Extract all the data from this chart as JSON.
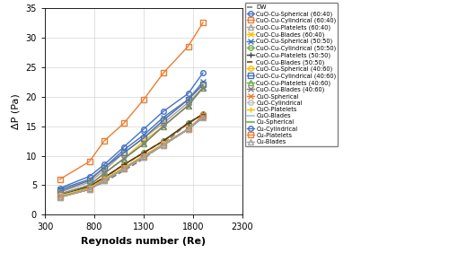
{
  "re": [
    450,
    750,
    900,
    1100,
    1300,
    1500,
    1750,
    1900
  ],
  "series": [
    {
      "label": "DW",
      "color": "#808080",
      "marker": "None",
      "linestyle": "--",
      "linewidth": 1.2,
      "markersize": 4,
      "markerfacecolor": "none",
      "values": [
        3.0,
        4.5,
        5.5,
        7.5,
        9.5,
        12.0,
        15.5,
        17.0
      ]
    },
    {
      "label": "CuO-Cu-Spherical (60:40)",
      "color": "#4472C4",
      "marker": "o",
      "markerfacecolor": "none",
      "linestyle": "-",
      "linewidth": 1.0,
      "markersize": 4,
      "values": [
        4.5,
        6.5,
        8.5,
        11.5,
        14.5,
        17.5,
        20.5,
        24.0
      ]
    },
    {
      "label": "CuO-Cu-Cylindrical (60:40)",
      "color": "#ED7D31",
      "marker": "s",
      "markerfacecolor": "none",
      "linestyle": "-",
      "linewidth": 1.0,
      "markersize": 4,
      "values": [
        6.0,
        9.0,
        12.5,
        15.5,
        19.5,
        24.0,
        28.5,
        32.5
      ]
    },
    {
      "label": "CuO-Cu-Platelets (60:40)",
      "color": "#A5A5A5",
      "marker": "^",
      "markerfacecolor": "none",
      "linestyle": "-",
      "linewidth": 1.0,
      "markersize": 4,
      "values": [
        3.8,
        5.5,
        7.5,
        10.5,
        13.0,
        15.5,
        19.0,
        21.5
      ]
    },
    {
      "label": "CuO-Cu-Blades (60:40)",
      "color": "#FFC000",
      "marker": "x",
      "markerfacecolor": "none",
      "linestyle": "-",
      "linewidth": 1.0,
      "markersize": 4,
      "values": [
        3.5,
        5.0,
        7.0,
        9.5,
        12.5,
        15.0,
        18.5,
        21.5
      ]
    },
    {
      "label": "CuO-Cu-Spherical (50:50)",
      "color": "#4472C4",
      "marker": "x",
      "markerfacecolor": "#4472C4",
      "linestyle": "-",
      "linewidth": 1.0,
      "markersize": 4,
      "values": [
        4.3,
        6.0,
        8.0,
        11.0,
        13.5,
        16.5,
        19.5,
        22.5
      ]
    },
    {
      "label": "CuO-Cu-Cylindrical (50:50)",
      "color": "#70AD47",
      "marker": "o",
      "markerfacecolor": "none",
      "linestyle": "-",
      "linewidth": 1.0,
      "markersize": 4,
      "values": [
        3.3,
        4.8,
        6.3,
        8.5,
        10.5,
        12.5,
        15.5,
        17.0
      ]
    },
    {
      "label": "CuO-Cu-Platelets (50:50)",
      "color": "#404040",
      "marker": "+",
      "markerfacecolor": "#404040",
      "linestyle": "-",
      "linewidth": 1.0,
      "markersize": 4,
      "values": [
        3.3,
        4.8,
        6.3,
        8.5,
        10.5,
        12.5,
        15.5,
        17.0
      ]
    },
    {
      "label": "CuO-Cu-Blades (50:50)",
      "color": "#7B3F00",
      "marker": "None",
      "markerfacecolor": "none",
      "linestyle": "--",
      "linewidth": 1.2,
      "markersize": 4,
      "values": [
        3.3,
        4.8,
        6.3,
        8.5,
        10.5,
        12.5,
        15.5,
        17.0
      ]
    },
    {
      "label": "CuO-Cu-Spherical (40:60)",
      "color": "#FFC000",
      "marker": "o",
      "markerfacecolor": "none",
      "linestyle": "-",
      "linewidth": 1.0,
      "markersize": 4,
      "values": [
        4.0,
        5.8,
        8.0,
        10.5,
        13.0,
        16.0,
        19.5,
        22.0
      ]
    },
    {
      "label": "CuO-Cu-Cylindrical (40:60)",
      "color": "#4472C4",
      "marker": "s",
      "markerfacecolor": "none",
      "linestyle": "-",
      "linewidth": 1.0,
      "markersize": 4,
      "values": [
        4.0,
        5.8,
        8.0,
        10.5,
        13.0,
        16.0,
        19.5,
        22.0
      ]
    },
    {
      "label": "CuO-Cu-Platelets (40:60)",
      "color": "#70AD47",
      "marker": "^",
      "markerfacecolor": "none",
      "linestyle": "-",
      "linewidth": 1.0,
      "markersize": 4,
      "values": [
        3.5,
        5.0,
        7.0,
        9.5,
        12.0,
        15.0,
        18.5,
        21.5
      ]
    },
    {
      "label": "CuO-Cu-Blades (40:60)",
      "color": "#808080",
      "marker": "x",
      "markerfacecolor": "#808080",
      "linestyle": "-",
      "linewidth": 1.0,
      "markersize": 4,
      "values": [
        3.5,
        5.0,
        7.0,
        9.5,
        12.0,
        15.0,
        18.5,
        21.5
      ]
    },
    {
      "label": "CuO-Spherical",
      "color": "#ED7D31",
      "marker": "x",
      "markerfacecolor": "#ED7D31",
      "linestyle": "-",
      "linewidth": 1.0,
      "markersize": 4,
      "values": [
        3.2,
        4.5,
        6.0,
        8.0,
        10.0,
        12.0,
        14.5,
        16.5
      ]
    },
    {
      "label": "CuO-Cylindrical",
      "color": "#C0C0C0",
      "marker": "o",
      "markerfacecolor": "none",
      "linestyle": "-",
      "linewidth": 1.0,
      "markersize": 4,
      "values": [
        3.2,
        4.5,
        6.0,
        8.0,
        10.0,
        12.0,
        14.5,
        16.5
      ]
    },
    {
      "label": "CuO-Platelets",
      "color": "#FFC000",
      "marker": "+",
      "markerfacecolor": "#FFC000",
      "linestyle": "-",
      "linewidth": 1.0,
      "markersize": 4,
      "values": [
        3.2,
        4.5,
        6.0,
        8.0,
        10.0,
        12.0,
        14.5,
        16.5
      ]
    },
    {
      "label": "CuO-Blades",
      "color": "#9DC3E6",
      "marker": "None",
      "markerfacecolor": "none",
      "linestyle": "-",
      "linewidth": 1.2,
      "markersize": 4,
      "values": [
        3.0,
        4.3,
        5.8,
        7.8,
        9.8,
        11.8,
        14.5,
        16.5
      ]
    },
    {
      "label": "Cu-Spherical",
      "color": "#70AD47",
      "marker": "None",
      "markerfacecolor": "none",
      "linestyle": "-",
      "linewidth": 1.2,
      "markersize": 4,
      "values": [
        3.0,
        4.3,
        5.8,
        7.8,
        9.8,
        11.8,
        14.5,
        16.5
      ]
    },
    {
      "label": "Cu-Cylindrical",
      "color": "#4472C4",
      "marker": "o",
      "markerfacecolor": "none",
      "linestyle": "-",
      "linewidth": 1.0,
      "markersize": 4,
      "values": [
        3.0,
        4.3,
        5.8,
        7.8,
        9.8,
        11.8,
        14.5,
        16.5
      ]
    },
    {
      "label": "Cu-Platelets",
      "color": "#ED7D31",
      "marker": "s",
      "markerfacecolor": "none",
      "linestyle": "-",
      "linewidth": 1.0,
      "markersize": 4,
      "values": [
        3.0,
        4.3,
        5.8,
        7.8,
        9.8,
        11.8,
        14.5,
        16.8
      ]
    },
    {
      "label": "Cu-Blades",
      "color": "#A5A5A5",
      "marker": "^",
      "markerfacecolor": "none",
      "linestyle": "-",
      "linewidth": 1.0,
      "markersize": 4,
      "values": [
        3.0,
        4.3,
        5.8,
        7.8,
        9.8,
        11.8,
        14.5,
        16.5
      ]
    }
  ],
  "xlabel": "Reynolds number (Re)",
  "ylabel": "ΔP (Pa)",
  "xlim": [
    300,
    2300
  ],
  "ylim": [
    0,
    35
  ],
  "xticks": [
    300,
    800,
    1300,
    1800,
    2300
  ],
  "yticks": [
    0,
    5,
    10,
    15,
    20,
    25,
    30,
    35
  ],
  "legend_fontsize": 4.8,
  "axis_label_fontsize": 8,
  "tick_fontsize": 7,
  "fig_width": 5.0,
  "fig_height": 2.92,
  "dpi": 100
}
